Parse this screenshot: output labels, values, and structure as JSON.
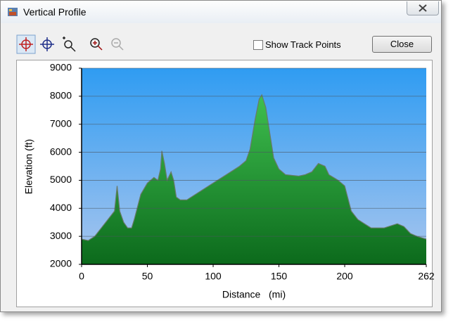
{
  "window": {
    "title": "Vertical Profile",
    "checkbox_label": "Show Track Points",
    "close_button": "Close"
  },
  "chart_data": {
    "type": "area",
    "xlabel": "Distance   (mi)",
    "ylabel": "Elevation (ft)",
    "x": [
      0,
      5,
      10,
      15,
      20,
      25,
      27,
      29,
      32,
      35,
      38,
      40,
      45,
      50,
      55,
      58,
      60,
      61,
      63,
      65,
      68,
      70,
      72,
      75,
      80,
      90,
      100,
      110,
      120,
      125,
      128,
      132,
      135,
      137,
      140,
      143,
      146,
      150,
      155,
      165,
      170,
      175,
      180,
      185,
      188,
      195,
      200,
      205,
      210,
      215,
      220,
      230,
      240,
      245,
      250,
      255,
      262
    ],
    "values": [
      2900,
      2850,
      3000,
      3300,
      3600,
      3900,
      4800,
      3900,
      3500,
      3300,
      3300,
      3600,
      4500,
      4900,
      5100,
      5000,
      5400,
      6050,
      5600,
      5000,
      5300,
      5000,
      4400,
      4300,
      4300,
      4600,
      4900,
      5200,
      5500,
      5700,
      6100,
      7200,
      7900,
      8050,
      7600,
      6700,
      5800,
      5400,
      5200,
      5150,
      5200,
      5300,
      5600,
      5500,
      5200,
      5000,
      4800,
      3900,
      3600,
      3450,
      3300,
      3300,
      3450,
      3350,
      3100,
      3000,
      2900
    ],
    "xlim": [
      0,
      262
    ],
    "ylim": [
      2000,
      9000
    ],
    "xticks": [
      0,
      50,
      100,
      150,
      200,
      262
    ],
    "yticks": [
      2000,
      3000,
      4000,
      5000,
      6000,
      7000,
      8000,
      9000
    ],
    "grid": true,
    "color": "#22a33a"
  }
}
